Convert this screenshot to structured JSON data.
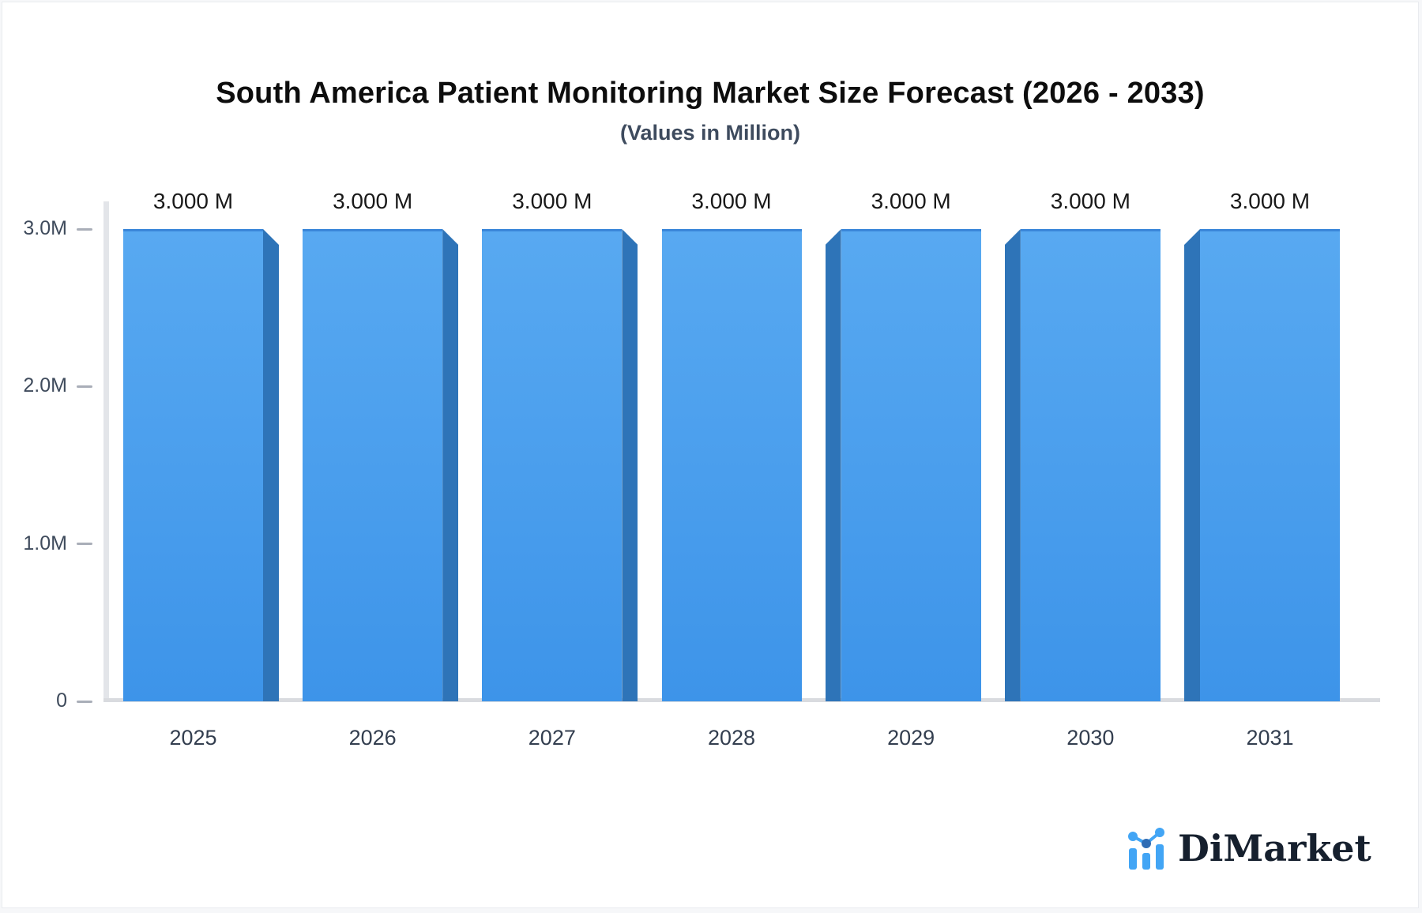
{
  "header": {
    "title": "South America Patient Monitoring Market Size Forecast (2026 - 2033)",
    "subtitle": "(Values in Million)"
  },
  "chart_data": {
    "type": "bar",
    "title": "South America Patient Monitoring Market Size Forecast (2026 - 2033)",
    "subtitle": "(Values in Million)",
    "unit": "Million",
    "categories": [
      "2025",
      "2026",
      "2027",
      "2028",
      "2029",
      "2030",
      "2031"
    ],
    "values": [
      3.0,
      3.0,
      3.0,
      3.0,
      3.0,
      3.0,
      3.0
    ],
    "value_labels": [
      "3.000 M",
      "3.000 M",
      "3.000 M",
      "3.000 M",
      "3.000 M",
      "3.000 M",
      "3.000 M"
    ],
    "xlabel": "",
    "ylabel": "",
    "ylim": [
      0,
      3.0
    ],
    "yticks": [
      {
        "value": 3.0,
        "label": "3.0M"
      },
      {
        "value": 2.0,
        "label": "2.0M"
      },
      {
        "value": 1.0,
        "label": "1.0M"
      },
      {
        "value": 0.0,
        "label": "0"
      }
    ],
    "grid": false,
    "legend": false,
    "colors": {
      "bar_face_top": "#58a9f1",
      "bar_face_bottom": "#3d94e9",
      "bar_side": "#2e74b8",
      "bar_top_edge": "#3a86d9",
      "axis_line": "#e3e5e9",
      "baseline": "#d9dbdf",
      "tick_text": "#3f4b5c",
      "category_text": "#333e4f",
      "value_text": "#191919"
    }
  },
  "logo": {
    "text": "DiMarket",
    "icon": "bar-chart-logo-icon",
    "icon_color": "#42a5f5",
    "text_color": "#16202e"
  }
}
